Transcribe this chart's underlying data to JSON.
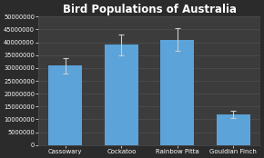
{
  "title": "Bird Populations of Australia",
  "categories": [
    "Cassowary",
    "Cockatoo",
    "Rainbow Pitta",
    "Gouldian Finch"
  ],
  "values": [
    31000000,
    39000000,
    41000000,
    12000000
  ],
  "errors": [
    3000000,
    4000000,
    4500000,
    1500000
  ],
  "bar_color": "#5BA3D9",
  "error_color": "#CCCCCC",
  "background_color": "#2B2B2B",
  "axes_background": "#3C3C3C",
  "grid_color": "#505050",
  "text_color": "#FFFFFF",
  "title_fontsize": 8.5,
  "tick_fontsize": 4.8,
  "xlabel_fontsize": 5.0,
  "ylim": [
    0,
    50000000
  ],
  "yticks": [
    0,
    5000000,
    10000000,
    15000000,
    20000000,
    25000000,
    30000000,
    35000000,
    40000000,
    45000000,
    50000000
  ],
  "bar_width": 0.6,
  "figsize": [
    2.9,
    1.74
  ],
  "dpi": 100
}
